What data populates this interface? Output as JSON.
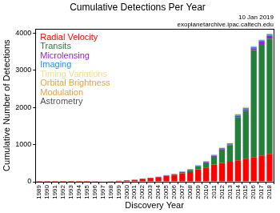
{
  "chart_data": {
    "type": "bar",
    "title": "Cumulative Detections Per Year",
    "annotations": [
      "10 Jan 2019",
      "exoplanetarchive.ipac.caltech.edu"
    ],
    "x_label": "Discovery Year",
    "y_label": "Cumulative Number of Detections",
    "categories": [
      "1989",
      "1990",
      "1991",
      "1992",
      "1993",
      "1994",
      "1995",
      "1996",
      "1997",
      "1998",
      "1999",
      "2000",
      "2001",
      "2002",
      "2003",
      "2004",
      "2005",
      "2006",
      "2007",
      "2008",
      "2009",
      "2010",
      "2011",
      "2012",
      "2013",
      "2014",
      "2015",
      "2016",
      "2017",
      "2018"
    ],
    "series": [
      {
        "name": "Radial Velocity",
        "color": "#ff0000",
        "values": [
          1,
          1,
          1,
          1,
          1,
          1,
          2,
          8,
          9,
          14,
          25,
          40,
          53,
          82,
          104,
          126,
          160,
          184,
          224,
          257,
          335,
          382,
          462,
          507,
          537,
          578,
          621,
          663,
          703,
          745
        ]
      },
      {
        "name": "Transits",
        "color": "#23803a",
        "values": [
          0,
          0,
          0,
          0,
          0,
          0,
          0,
          0,
          0,
          0,
          0,
          0,
          0,
          1,
          1,
          5,
          9,
          19,
          40,
          63,
          84,
          137,
          226,
          357,
          439,
          1160,
          1290,
          2876,
          2995,
          3100
        ]
      },
      {
        "name": "Microlensing",
        "color": "#9a1fd6",
        "values": [
          0,
          0,
          0,
          0,
          0,
          0,
          0,
          0,
          0,
          0,
          0,
          0,
          0,
          0,
          0,
          1,
          3,
          4,
          4,
          7,
          8,
          10,
          11,
          18,
          24,
          31,
          38,
          46,
          64,
          73
        ]
      },
      {
        "name": "Imaging",
        "color": "#1e90ff",
        "values": [
          0,
          0,
          0,
          0,
          0,
          0,
          0,
          0,
          0,
          0,
          0,
          0,
          0,
          0,
          0,
          2,
          3,
          4,
          4,
          10,
          12,
          20,
          23,
          26,
          31,
          34,
          38,
          40,
          42,
          44
        ]
      },
      {
        "name": "Timing Variations",
        "color": "#eee08c",
        "values": [
          0,
          0,
          0,
          2,
          2,
          3,
          3,
          3,
          3,
          3,
          3,
          3,
          3,
          3,
          3,
          3,
          3,
          3,
          3,
          4,
          4,
          6,
          7,
          9,
          11,
          13,
          14,
          16,
          17,
          17
        ]
      },
      {
        "name": "Orbital Brightness Modulation",
        "color": "#f0a040",
        "values": [
          0,
          0,
          0,
          0,
          0,
          0,
          0,
          0,
          0,
          0,
          0,
          0,
          0,
          0,
          0,
          0,
          0,
          0,
          0,
          0,
          0,
          0,
          2,
          2,
          3,
          4,
          4,
          6,
          6,
          6
        ]
      },
      {
        "name": "Astrometry",
        "color": "#555555",
        "values": [
          0,
          0,
          0,
          0,
          0,
          0,
          0,
          0,
          0,
          0,
          0,
          0,
          0,
          0,
          0,
          0,
          0,
          0,
          0,
          0,
          0,
          0,
          0,
          0,
          1,
          1,
          1,
          1,
          1,
          1
        ]
      }
    ],
    "stacked": true,
    "ylim": [
      0,
      4100
    ],
    "yticks": [
      0,
      1000,
      2000,
      3000,
      4000
    ],
    "grid": false,
    "legend": "upper left"
  }
}
